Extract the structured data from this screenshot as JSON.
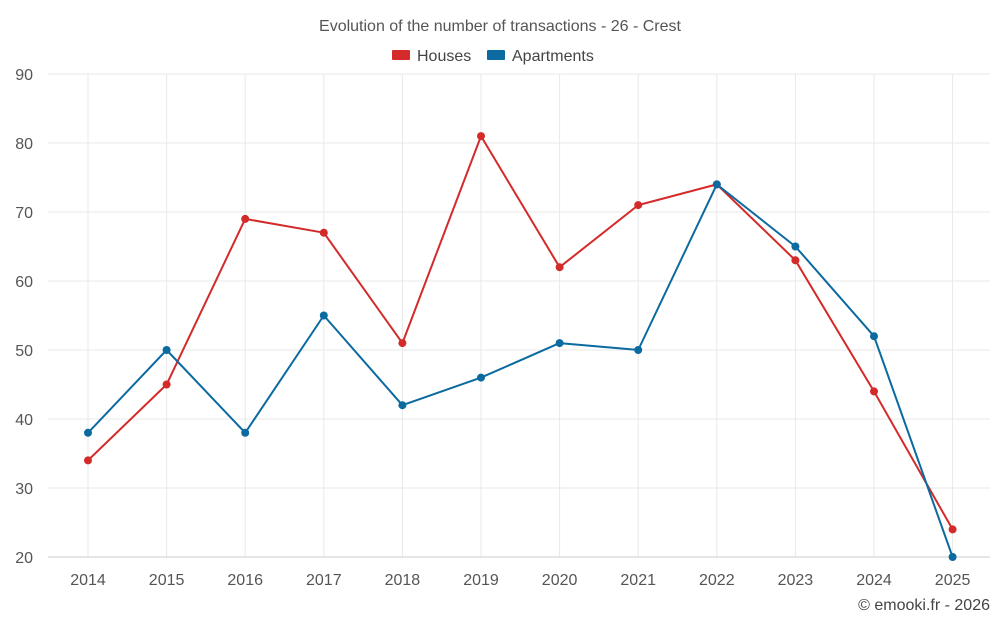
{
  "chart_data": {
    "type": "line",
    "title": "Evolution of the number of transactions - 26 - Crest",
    "xlabel": "",
    "ylabel": "",
    "categories": [
      "2014",
      "2015",
      "2016",
      "2017",
      "2018",
      "2019",
      "2020",
      "2021",
      "2022",
      "2023",
      "2024",
      "2025"
    ],
    "ylim": [
      20,
      90
    ],
    "yticks": [
      20,
      30,
      40,
      50,
      60,
      70,
      80,
      90
    ],
    "grid": true,
    "legend_position": "top-center",
    "series": [
      {
        "name": "Houses",
        "color": "#d42a2a",
        "values": [
          34,
          45,
          69,
          67,
          51,
          81,
          62,
          71,
          74,
          63,
          44,
          24
        ]
      },
      {
        "name": "Apartments",
        "color": "#0b6aa0",
        "values": [
          38,
          50,
          38,
          55,
          42,
          46,
          51,
          50,
          74,
          65,
          52,
          20
        ]
      }
    ]
  },
  "credit": "© emooki.fr - 2026"
}
